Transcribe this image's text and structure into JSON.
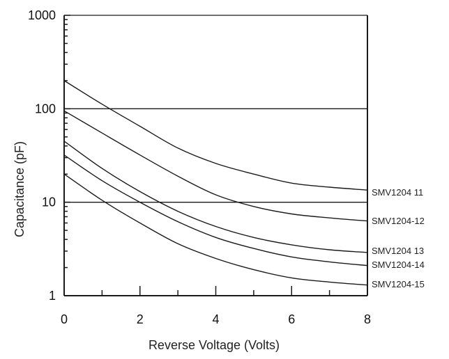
{
  "chart_data": {
    "type": "line",
    "title": "",
    "xlabel": "Reverse Voltage (Volts)",
    "ylabel": "Capacitance (pF)",
    "xlim": [
      0,
      8
    ],
    "ylim": [
      1,
      1000
    ],
    "yscale": "log",
    "grid": true,
    "x_ticks": [
      "0",
      "2",
      "4",
      "6",
      "8"
    ],
    "y_ticks": [
      "1",
      "10",
      "100",
      "1000"
    ],
    "series": [
      {
        "name": "SMV1204 11",
        "x": [
          0,
          1,
          2,
          3,
          4,
          5,
          6,
          7,
          8
        ],
        "values": [
          200,
          112,
          65,
          38,
          26,
          20,
          16,
          14.5,
          13.5
        ]
      },
      {
        "name": "SMV1204-12",
        "x": [
          0,
          1,
          2,
          3,
          4,
          5,
          6,
          7,
          8
        ],
        "values": [
          95,
          55,
          32,
          19,
          12,
          9,
          7.5,
          6.8,
          6.3
        ]
      },
      {
        "name": "SMV1204 13",
        "x": [
          0,
          1,
          2,
          3,
          4,
          5,
          6,
          7,
          8
        ],
        "values": [
          45,
          23,
          13,
          8,
          5.5,
          4.2,
          3.5,
          3.1,
          2.9
        ]
      },
      {
        "name": "SMV1204-14",
        "x": [
          0,
          1,
          2,
          3,
          4,
          5,
          6,
          7,
          8
        ],
        "values": [
          32,
          17,
          10,
          6.2,
          4.2,
          3.2,
          2.6,
          2.3,
          2.1
        ]
      },
      {
        "name": "SMV1204-15",
        "x": [
          0,
          1,
          2,
          3,
          4,
          5,
          6,
          7,
          8
        ],
        "values": [
          20,
          10.5,
          6,
          3.6,
          2.5,
          1.9,
          1.55,
          1.4,
          1.3
        ]
      }
    ]
  }
}
